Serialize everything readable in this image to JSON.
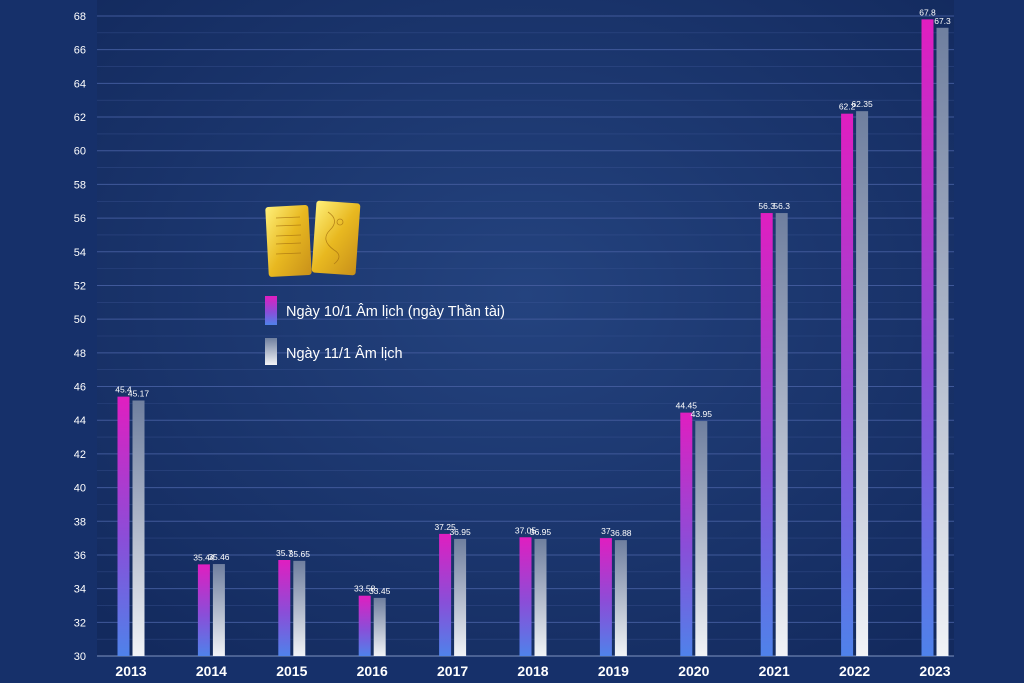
{
  "chart_data": {
    "type": "bar",
    "categories": [
      "2013",
      "2014",
      "2015",
      "2016",
      "2017",
      "2018",
      "2019",
      "2020",
      "2021",
      "2022",
      "2023"
    ],
    "series": [
      {
        "name": "Ngày 10/1 Âm lịch (ngày Thần tài)",
        "values": [
          45.4,
          35.44,
          35.7,
          33.58,
          37.25,
          37.05,
          37,
          44.45,
          56.3,
          62.2,
          67.8
        ],
        "labels": [
          "45.4",
          "35.44",
          "35.7",
          "33.58",
          "37.25",
          "37.05",
          "37",
          "44.45",
          "56.3",
          "62.2",
          "67.8"
        ]
      },
      {
        "name": "Ngày 11/1 Âm lịch",
        "values": [
          45.17,
          35.46,
          35.65,
          33.45,
          36.95,
          36.95,
          36.88,
          43.95,
          56.3,
          62.35,
          67.3
        ],
        "labels": [
          "45.17",
          "35.46",
          "35.65",
          "33.45",
          "36.95",
          "36.95",
          "36.88",
          "43.95",
          "56.3",
          "62.35",
          "67.3"
        ]
      }
    ],
    "ylim": [
      30,
      68
    ],
    "yticks": [
      "30",
      "32",
      "34",
      "36",
      "38",
      "40",
      "42",
      "44",
      "46",
      "48",
      "50",
      "52",
      "54",
      "56",
      "58",
      "60",
      "62",
      "64",
      "66",
      "68"
    ],
    "grid": true,
    "legend_position": "upper-left, inside plot",
    "colors": {
      "background": "#16306a",
      "plot_background": "#1a3670",
      "grid": "#40599a",
      "series1_top": "#e01ec0",
      "series1_bottom": "#4f82ea",
      "series2_top": "#6f7f9f",
      "series2_bottom": "#f1f3f7",
      "text": "#ffffff"
    },
    "decoration": "two-gold-bars-icon"
  }
}
